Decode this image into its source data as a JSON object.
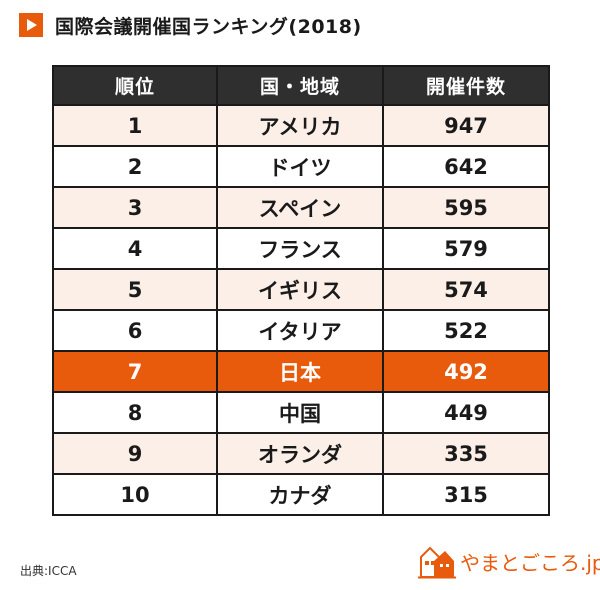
{
  "title": "国際会議開催国ランキング(2018)",
  "table": {
    "headers": [
      "順位",
      "国・地域",
      "開催件数"
    ],
    "rows": [
      {
        "rank": "1",
        "country": "アメリカ",
        "count": "947"
      },
      {
        "rank": "2",
        "country": "ドイツ",
        "count": "642"
      },
      {
        "rank": "3",
        "country": "スペイン",
        "count": "595"
      },
      {
        "rank": "4",
        "country": "フランス",
        "count": "579"
      },
      {
        "rank": "5",
        "country": "イギリス",
        "count": "574"
      },
      {
        "rank": "6",
        "country": "イタリア",
        "count": "522"
      },
      {
        "rank": "7",
        "country": "日本",
        "count": "492"
      },
      {
        "rank": "8",
        "country": "中国",
        "count": "449"
      },
      {
        "rank": "9",
        "country": "オランダ",
        "count": "335"
      },
      {
        "rank": "10",
        "country": "カナダ",
        "count": "315"
      }
    ]
  },
  "source": "出典:ICCA",
  "brand": {
    "text": "やまとごころ.jp",
    "logo_icon": "house-mountain-logo-icon"
  },
  "colors": {
    "accent": "#e85a0c",
    "header_bg": "#2f2f2f",
    "row_tint": "#fcefe8"
  }
}
